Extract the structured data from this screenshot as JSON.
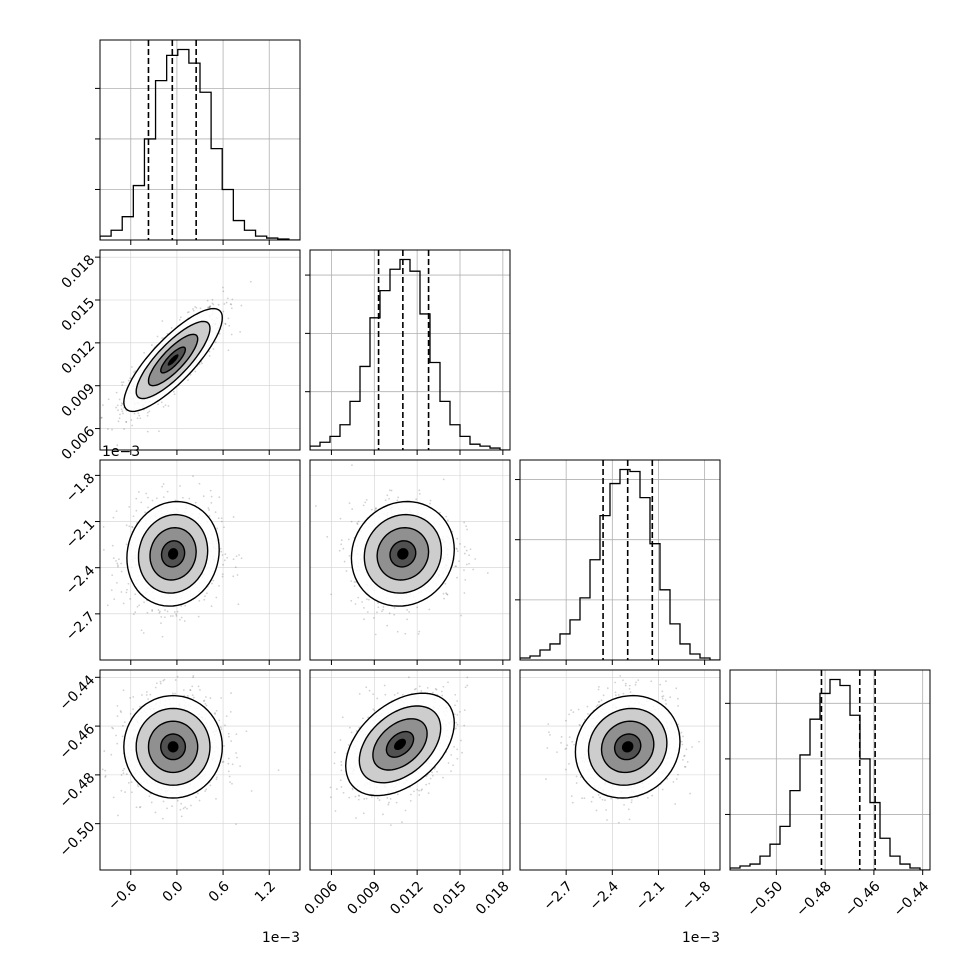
{
  "chart_data": {
    "type": "corner",
    "figure": {
      "description_free": true,
      "n_params": 4
    },
    "params": [
      {
        "ticks": [
          -0.6,
          0.0,
          0.6,
          1.2
        ],
        "tick_labels": [
          "−0.6",
          "0.0",
          "0.6",
          "1.2"
        ],
        "offset_label": "1e−3",
        "range": [
          -1.0,
          1.6
        ],
        "hist": [
          0.02,
          0.05,
          0.12,
          0.28,
          0.52,
          0.82,
          0.95,
          0.98,
          0.91,
          0.76,
          0.47,
          0.26,
          0.1,
          0.05,
          0.02,
          0.01,
          0.005,
          0.0
        ],
        "quantiles": [
          -0.37,
          -0.06,
          0.25
        ],
        "hist_yticks": [
          0.26,
          0.52,
          0.78
        ]
      },
      {
        "ticks": [
          0.006,
          0.009,
          0.012,
          0.015,
          0.018
        ],
        "tick_labels": [
          "0.006",
          "0.009",
          "0.012",
          "0.015",
          "0.018"
        ],
        "offset_label": "",
        "range": [
          0.0045,
          0.0185
        ],
        "hist": [
          0.02,
          0.04,
          0.07,
          0.13,
          0.25,
          0.43,
          0.68,
          0.82,
          0.93,
          0.98,
          0.92,
          0.7,
          0.45,
          0.25,
          0.13,
          0.07,
          0.03,
          0.02,
          0.01,
          0.0
        ],
        "quantiles": [
          0.0093,
          0.011,
          0.0128
        ],
        "hist_yticks": [
          0.3,
          0.6,
          0.9
        ]
      },
      {
        "ticks": [
          -2.7,
          -2.4,
          -2.1,
          -1.8
        ],
        "tick_labels": [
          "−2.7",
          "−2.4",
          "−2.1",
          "−1.8"
        ],
        "offset_label": "1e−3",
        "range": [
          -3.0,
          -1.7
        ],
        "hist": [
          0.01,
          0.02,
          0.05,
          0.08,
          0.13,
          0.2,
          0.31,
          0.5,
          0.72,
          0.88,
          0.95,
          0.94,
          0.81,
          0.58,
          0.35,
          0.18,
          0.08,
          0.03,
          0.01,
          0.0
        ],
        "quantiles": [
          -2.46,
          -2.3,
          -2.14
        ],
        "hist_yticks": [
          0.3,
          0.6,
          0.9
        ]
      },
      {
        "ticks": [
          -0.5,
          -0.48,
          -0.46,
          -0.44
        ],
        "tick_labels": [
          "−0.50",
          "−0.48",
          "−0.46",
          "−0.44"
        ],
        "offset_label": "",
        "range": [
          -0.519,
          -0.437
        ],
        "hist": [
          0.01,
          0.02,
          0.03,
          0.07,
          0.13,
          0.22,
          0.4,
          0.58,
          0.76,
          0.89,
          0.96,
          0.93,
          0.78,
          0.56,
          0.34,
          0.16,
          0.07,
          0.03,
          0.01,
          0.0
        ],
        "quantiles": [
          -0.4815,
          -0.4658,
          -0.4595
        ],
        "hist_yticks": [
          0.28,
          0.56,
          0.84
        ]
      }
    ],
    "pairs": [
      {
        "x": 0,
        "y": 1,
        "center": [
          -0.05,
          0.0108
        ],
        "sd": [
          0.32,
          0.0018
        ],
        "rho": 0.82
      },
      {
        "x": 0,
        "y": 2,
        "center": [
          -0.05,
          -2.31
        ],
        "sd": [
          0.3,
          0.17
        ],
        "rho": 0.08
      },
      {
        "x": 1,
        "y": 2,
        "center": [
          0.011,
          -2.31
        ],
        "sd": [
          0.0018,
          0.17
        ],
        "rho": 0.08
      },
      {
        "x": 0,
        "y": 3,
        "center": [
          -0.05,
          -0.4685
        ],
        "sd": [
          0.32,
          0.0105
        ],
        "rho": 0.0
      },
      {
        "x": 1,
        "y": 3,
        "center": [
          0.0108,
          -0.4675
        ],
        "sd": [
          0.0019,
          0.0105
        ],
        "rho": 0.42
      },
      {
        "x": 2,
        "y": 3,
        "center": [
          -2.3,
          -0.4685
        ],
        "sd": [
          0.17,
          0.0105
        ],
        "rho": 0.1
      }
    ],
    "contour_levels": [
      0.5,
      1.0,
      1.5,
      2.0
    ],
    "grid": true,
    "legend": "none"
  }
}
